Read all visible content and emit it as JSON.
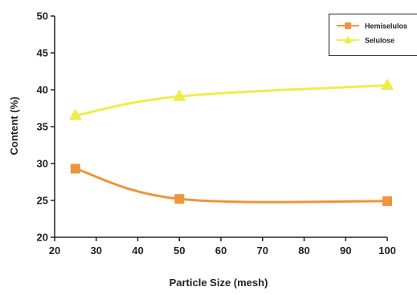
{
  "chart_data": {
    "type": "line",
    "xlabel": "Particle Size (mesh)",
    "ylabel": "Content (%)",
    "xlim": [
      20,
      100
    ],
    "ylim": [
      20,
      50
    ],
    "xticks": [
      20,
      30,
      40,
      50,
      60,
      70,
      80,
      90,
      100
    ],
    "yticks": [
      20,
      25,
      30,
      35,
      40,
      45,
      50
    ],
    "grid": false,
    "legend_position": "top-right",
    "smooth": true,
    "series": [
      {
        "name": "Hemiselulos",
        "color": "#f0943a",
        "marker": "square",
        "x": [
          25,
          50,
          100
        ],
        "y": [
          29.3,
          25.2,
          24.9
        ]
      },
      {
        "name": "Selulose",
        "color": "#eeee4a",
        "marker": "triangle",
        "x": [
          25,
          50,
          100
        ],
        "y": [
          36.5,
          39.1,
          40.6
        ]
      }
    ]
  }
}
